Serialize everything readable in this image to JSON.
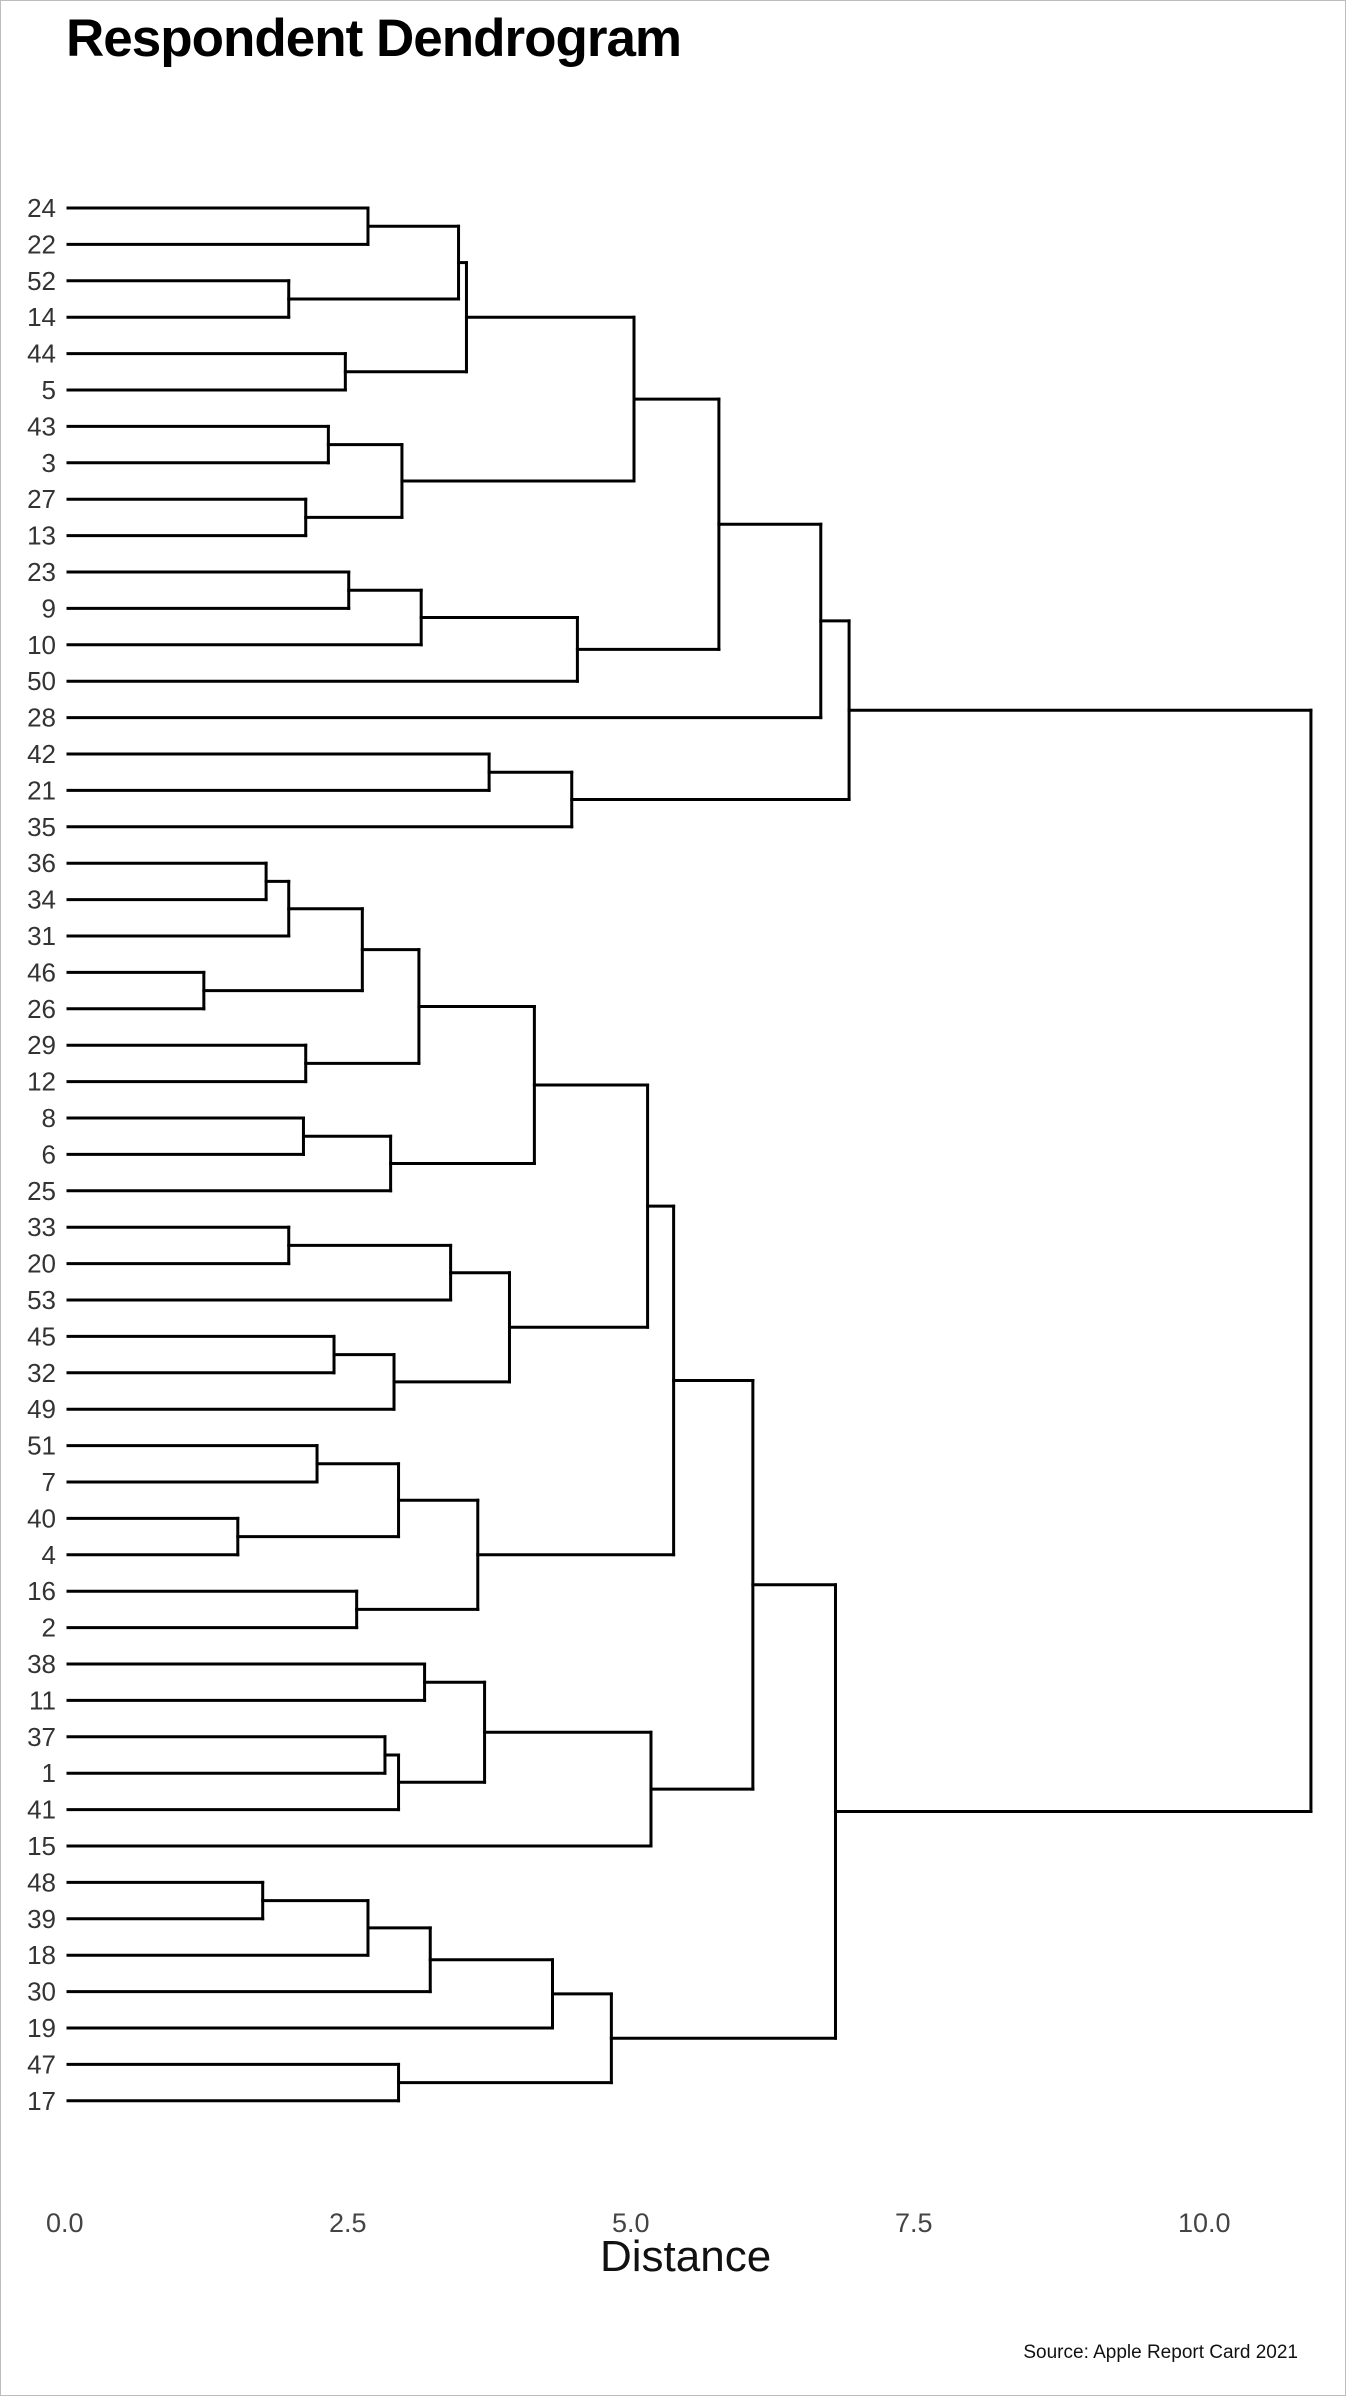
{
  "chart_data": {
    "type": "dendrogram",
    "title": "Respondent Dendrogram",
    "xlabel": "Distance",
    "xlim": [
      0,
      11.3
    ],
    "xticks": [
      "0.0",
      "2.5",
      "5.0",
      "7.5",
      "10.0"
    ],
    "xtick_values": [
      0,
      2.5,
      5,
      7.5,
      10
    ],
    "leaves": [
      "24",
      "22",
      "52",
      "14",
      "44",
      "5",
      "43",
      "3",
      "27",
      "13",
      "23",
      "9",
      "10",
      "50",
      "28",
      "42",
      "21",
      "35",
      "36",
      "34",
      "31",
      "46",
      "26",
      "29",
      "12",
      "8",
      "6",
      "25",
      "33",
      "20",
      "53",
      "45",
      "32",
      "49",
      "51",
      "7",
      "40",
      "4",
      "16",
      "2",
      "38",
      "11",
      "37",
      "1",
      "41",
      "15",
      "48",
      "39",
      "18",
      "30",
      "19",
      "47",
      "17"
    ],
    "merges": [
      {
        "id": "m01",
        "a": "24",
        "b": "22",
        "height": 2.65
      },
      {
        "id": "m02",
        "a": "52",
        "b": "14",
        "height": 1.95
      },
      {
        "id": "m03",
        "a": "m01",
        "b": "m02",
        "height": 3.45
      },
      {
        "id": "m04",
        "a": "44",
        "b": "5",
        "height": 2.45
      },
      {
        "id": "m05",
        "a": "m03",
        "b": "m04",
        "height": 3.52
      },
      {
        "id": "m06",
        "a": "43",
        "b": "3",
        "height": 2.3
      },
      {
        "id": "m07",
        "a": "27",
        "b": "13",
        "height": 2.1
      },
      {
        "id": "m08",
        "a": "m06",
        "b": "m07",
        "height": 2.95
      },
      {
        "id": "m09",
        "a": "m05",
        "b": "m08",
        "height": 5.0
      },
      {
        "id": "m10",
        "a": "23",
        "b": "9",
        "height": 2.48
      },
      {
        "id": "m11",
        "a": "m10",
        "b": "10",
        "height": 3.12
      },
      {
        "id": "m12",
        "a": "m11",
        "b": "50",
        "height": 4.5
      },
      {
        "id": "m13",
        "a": "m09",
        "b": "m12",
        "height": 5.75
      },
      {
        "id": "m14",
        "a": "m13",
        "b": "28",
        "height": 6.65
      },
      {
        "id": "m15",
        "a": "42",
        "b": "21",
        "height": 3.72
      },
      {
        "id": "m16",
        "a": "m15",
        "b": "35",
        "height": 4.45
      },
      {
        "id": "m17",
        "a": "m14",
        "b": "m16",
        "height": 6.9
      },
      {
        "id": "m18",
        "a": "36",
        "b": "34",
        "height": 1.75
      },
      {
        "id": "m19",
        "a": "m18",
        "b": "31",
        "height": 1.95
      },
      {
        "id": "m20",
        "a": "46",
        "b": "26",
        "height": 1.2
      },
      {
        "id": "m21",
        "a": "m19",
        "b": "m20",
        "height": 2.6
      },
      {
        "id": "m22",
        "a": "29",
        "b": "12",
        "height": 2.1
      },
      {
        "id": "m23",
        "a": "m21",
        "b": "m22",
        "height": 3.1
      },
      {
        "id": "m24",
        "a": "8",
        "b": "6",
        "height": 2.08
      },
      {
        "id": "m25",
        "a": "m24",
        "b": "25",
        "height": 2.85
      },
      {
        "id": "m26",
        "a": "m23",
        "b": "m25",
        "height": 4.12
      },
      {
        "id": "m27",
        "a": "33",
        "b": "20",
        "height": 1.95
      },
      {
        "id": "m28",
        "a": "m27",
        "b": "53",
        "height": 3.38
      },
      {
        "id": "m29",
        "a": "45",
        "b": "32",
        "height": 2.35
      },
      {
        "id": "m30",
        "a": "m29",
        "b": "49",
        "height": 2.88
      },
      {
        "id": "m31",
        "a": "m28",
        "b": "m30",
        "height": 3.9
      },
      {
        "id": "m32",
        "a": "m26",
        "b": "m31",
        "height": 5.12
      },
      {
        "id": "m33",
        "a": "51",
        "b": "7",
        "height": 2.2
      },
      {
        "id": "m34",
        "a": "40",
        "b": "4",
        "height": 1.5
      },
      {
        "id": "m35",
        "a": "m33",
        "b": "m34",
        "height": 2.92
      },
      {
        "id": "m36",
        "a": "16",
        "b": "2",
        "height": 2.55
      },
      {
        "id": "m37",
        "a": "m35",
        "b": "m36",
        "height": 3.62
      },
      {
        "id": "m38",
        "a": "m32",
        "b": "m37",
        "height": 5.35
      },
      {
        "id": "m39",
        "a": "38",
        "b": "11",
        "height": 3.15
      },
      {
        "id": "m40",
        "a": "37",
        "b": "1",
        "height": 2.8
      },
      {
        "id": "m41",
        "a": "m40",
        "b": "41",
        "height": 2.92
      },
      {
        "id": "m42",
        "a": "m39",
        "b": "m41",
        "height": 3.68
      },
      {
        "id": "m43",
        "a": "m42",
        "b": "15",
        "height": 5.15
      },
      {
        "id": "m44",
        "a": "m38",
        "b": "m43",
        "height": 6.05
      },
      {
        "id": "m45",
        "a": "48",
        "b": "39",
        "height": 1.72
      },
      {
        "id": "m46",
        "a": "m45",
        "b": "18",
        "height": 2.65
      },
      {
        "id": "m47",
        "a": "m46",
        "b": "30",
        "height": 3.2
      },
      {
        "id": "m48",
        "a": "m47",
        "b": "19",
        "height": 4.28
      },
      {
        "id": "m49",
        "a": "47",
        "b": "17",
        "height": 2.92
      },
      {
        "id": "m50",
        "a": "m48",
        "b": "m49",
        "height": 4.8
      },
      {
        "id": "m51",
        "a": "m44",
        "b": "m50",
        "height": 6.78
      },
      {
        "id": "m52",
        "a": "m17",
        "b": "m51",
        "height": 10.98
      }
    ]
  },
  "source": "Source: Apple Report Card 2021"
}
